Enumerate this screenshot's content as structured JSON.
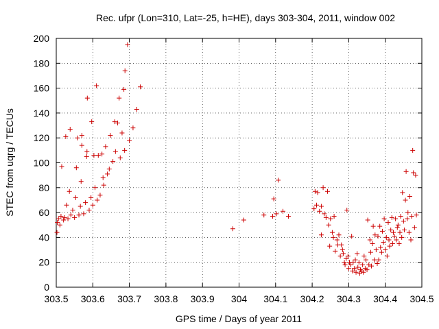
{
  "chart_data": {
    "type": "scatter",
    "title": "Rec. ufpr (Lon=310, Lat=-25, h=HE), days 303-304, 2011, window 002",
    "xlabel": "GPS time / Days of year 2011",
    "ylabel": "STEC from uqrg / TECUs",
    "xlim": [
      303.5,
      304.5
    ],
    "ylim": [
      0,
      200
    ],
    "x_ticks": [
      303.5,
      303.6,
      303.7,
      303.8,
      303.9,
      304.0,
      304.1,
      304.2,
      304.3,
      304.4,
      304.5
    ],
    "x_tick_labels": [
      "303.5",
      "303.6",
      "303.7",
      "303.8",
      "303.9",
      "304",
      "304.1",
      "304.2",
      "304.3",
      "304.4",
      "304.5"
    ],
    "y_ticks": [
      0,
      20,
      40,
      60,
      80,
      100,
      120,
      140,
      160,
      180,
      200
    ],
    "y_tick_labels": [
      "0",
      "20",
      "40",
      "60",
      "80",
      "100",
      "120",
      "140",
      "160",
      "180",
      "200"
    ],
    "grid": true,
    "marker": "plus",
    "marker_color": "#cc0000",
    "points": [
      [
        303.502,
        44
      ],
      [
        303.503,
        52
      ],
      [
        303.506,
        55
      ],
      [
        303.51,
        50
      ],
      [
        303.513,
        57
      ],
      [
        303.515,
        97
      ],
      [
        303.52,
        54
      ],
      [
        303.523,
        56
      ],
      [
        303.526,
        121
      ],
      [
        303.528,
        66
      ],
      [
        303.532,
        55
      ],
      [
        303.536,
        77
      ],
      [
        303.538,
        127
      ],
      [
        303.54,
        58
      ],
      [
        303.545,
        62
      ],
      [
        303.55,
        56
      ],
      [
        303.553,
        72
      ],
      [
        303.555,
        96
      ],
      [
        303.558,
        120
      ],
      [
        303.562,
        58
      ],
      [
        303.566,
        65
      ],
      [
        303.568,
        85
      ],
      [
        303.57,
        114
      ],
      [
        303.57,
        122
      ],
      [
        303.575,
        59
      ],
      [
        303.58,
        68
      ],
      [
        303.583,
        105
      ],
      [
        303.584,
        109
      ],
      [
        303.585,
        152
      ],
      [
        303.59,
        62
      ],
      [
        303.595,
        72
      ],
      [
        303.597,
        133
      ],
      [
        303.6,
        66
      ],
      [
        303.603,
        106
      ],
      [
        303.606,
        80
      ],
      [
        303.61,
        162
      ],
      [
        303.612,
        70
      ],
      [
        303.615,
        106
      ],
      [
        303.62,
        74
      ],
      [
        303.625,
        107
      ],
      [
        303.628,
        88
      ],
      [
        303.63,
        82
      ],
      [
        303.635,
        113
      ],
      [
        303.64,
        91
      ],
      [
        303.645,
        95
      ],
      [
        303.648,
        122
      ],
      [
        303.655,
        101
      ],
      [
        303.66,
        133
      ],
      [
        303.662,
        109
      ],
      [
        303.668,
        132
      ],
      [
        303.672,
        152
      ],
      [
        303.675,
        104
      ],
      [
        303.68,
        124
      ],
      [
        303.685,
        159
      ],
      [
        303.687,
        110
      ],
      [
        303.688,
        174
      ],
      [
        303.695,
        195
      ],
      [
        303.7,
        118
      ],
      [
        303.71,
        128
      ],
      [
        303.72,
        143
      ],
      [
        303.73,
        161
      ],
      [
        303.983,
        47
      ],
      [
        304.013,
        54
      ],
      [
        304.068,
        58
      ],
      [
        304.092,
        57
      ],
      [
        304.095,
        71
      ],
      [
        304.102,
        59
      ],
      [
        304.107,
        86
      ],
      [
        304.12,
        61
      ],
      [
        304.135,
        57
      ],
      [
        304.205,
        63
      ],
      [
        304.208,
        77
      ],
      [
        304.212,
        66
      ],
      [
        304.215,
        76
      ],
      [
        304.22,
        61
      ],
      [
        304.225,
        65
      ],
      [
        304.225,
        42
      ],
      [
        304.23,
        80
      ],
      [
        304.233,
        59
      ],
      [
        304.238,
        56
      ],
      [
        304.242,
        77
      ],
      [
        304.245,
        50
      ],
      [
        304.248,
        33
      ],
      [
        304.25,
        55
      ],
      [
        304.255,
        44
      ],
      [
        304.258,
        40
      ],
      [
        304.26,
        57
      ],
      [
        304.263,
        29
      ],
      [
        304.268,
        38
      ],
      [
        304.27,
        34
      ],
      [
        304.273,
        42
      ],
      [
        304.277,
        25
      ],
      [
        304.28,
        34
      ],
      [
        304.283,
        30
      ],
      [
        304.285,
        27
      ],
      [
        304.288,
        20
      ],
      [
        304.29,
        18
      ],
      [
        304.293,
        23
      ],
      [
        304.295,
        62
      ],
      [
        304.298,
        25
      ],
      [
        304.3,
        15
      ],
      [
        304.302,
        20
      ],
      [
        304.305,
        18
      ],
      [
        304.308,
        41
      ],
      [
        304.31,
        13
      ],
      [
        304.312,
        20
      ],
      [
        304.315,
        15
      ],
      [
        304.318,
        22
      ],
      [
        304.32,
        12
      ],
      [
        304.323,
        27
      ],
      [
        304.325,
        16
      ],
      [
        304.328,
        20
      ],
      [
        304.33,
        11
      ],
      [
        304.332,
        14
      ],
      [
        304.335,
        13
      ],
      [
        304.338,
        18
      ],
      [
        304.34,
        12
      ],
      [
        304.342,
        25
      ],
      [
        304.345,
        15
      ],
      [
        304.347,
        22
      ],
      [
        304.35,
        14
      ],
      [
        304.352,
        54
      ],
      [
        304.355,
        18
      ],
      [
        304.358,
        38
      ],
      [
        304.36,
        28
      ],
      [
        304.362,
        17
      ],
      [
        304.365,
        35
      ],
      [
        304.367,
        49
      ],
      [
        304.37,
        22
      ],
      [
        304.372,
        42
      ],
      [
        304.375,
        30
      ],
      [
        304.378,
        19
      ],
      [
        304.38,
        41
      ],
      [
        304.382,
        22
      ],
      [
        304.385,
        49
      ],
      [
        304.387,
        32
      ],
      [
        304.39,
        28
      ],
      [
        304.392,
        45
      ],
      [
        304.395,
        36
      ],
      [
        304.397,
        55
      ],
      [
        304.4,
        30
      ],
      [
        304.403,
        40
      ],
      [
        304.405,
        25
      ],
      [
        304.408,
        52
      ],
      [
        304.41,
        38
      ],
      [
        304.412,
        33
      ],
      [
        304.415,
        46
      ],
      [
        304.418,
        56
      ],
      [
        304.42,
        35
      ],
      [
        304.422,
        44
      ],
      [
        304.425,
        41
      ],
      [
        304.428,
        55
      ],
      [
        304.43,
        38
      ],
      [
        304.433,
        48
      ],
      [
        304.435,
        50
      ],
      [
        304.438,
        35
      ],
      [
        304.44,
        44
      ],
      [
        304.442,
        57
      ],
      [
        304.445,
        40
      ],
      [
        304.447,
        76
      ],
      [
        304.45,
        53
      ],
      [
        304.452,
        46
      ],
      [
        304.455,
        70
      ],
      [
        304.457,
        93
      ],
      [
        304.46,
        55
      ],
      [
        304.462,
        60
      ],
      [
        304.465,
        44
      ],
      [
        304.467,
        73
      ],
      [
        304.47,
        38
      ],
      [
        304.472,
        57
      ],
      [
        304.475,
        110
      ],
      [
        304.477,
        92
      ],
      [
        304.48,
        48
      ],
      [
        304.483,
        90
      ],
      [
        304.485,
        58
      ]
    ]
  }
}
